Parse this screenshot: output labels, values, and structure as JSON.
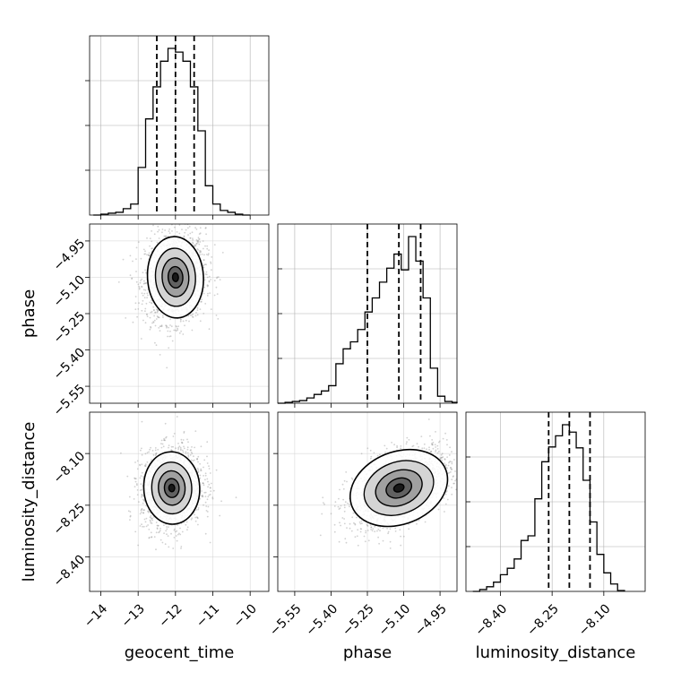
{
  "chart_data": {
    "type": "corner",
    "parameters": [
      "geocent_time",
      "phase",
      "luminosity_distance"
    ],
    "axes": {
      "geocent_time": {
        "ticks": [
          -14,
          -13,
          -12,
          -11,
          -10
        ],
        "tick_labels": [
          "−14",
          "−13",
          "−12",
          "−11",
          "−10"
        ],
        "lim": [
          -14.3,
          -9.5
        ]
      },
      "phase": {
        "ticks": [
          -5.55,
          -5.4,
          -5.25,
          -5.1,
          -4.95
        ],
        "tick_labels": [
          "−5.55",
          "−5.40",
          "−5.25",
          "−5.10",
          "−4.95"
        ],
        "lim": [
          -5.62,
          -4.88
        ]
      },
      "luminosity_distance": {
        "ticks": [
          -8.4,
          -8.25,
          -8.1
        ],
        "tick_labels": [
          "−8.40",
          "−8.25",
          "−8.10"
        ],
        "lim": [
          -8.5,
          -7.98
        ]
      }
    },
    "grid": true,
    "marginals": [
      {
        "parameter": "geocent_time",
        "quantiles": [
          -12.5,
          -12.0,
          -11.5
        ],
        "bin_edges": [
          -14.2,
          -14.0,
          -13.8,
          -13.6,
          -13.4,
          -13.2,
          -13.0,
          -12.8,
          -12.6,
          -12.4,
          -12.2,
          -12.0,
          -11.8,
          -11.6,
          -11.4,
          -11.2,
          -11.0,
          -10.8,
          -10.6,
          -10.4,
          -10.2,
          -10.0
        ],
        "counts": [
          0,
          1,
          2,
          3,
          7,
          12,
          52,
          105,
          140,
          168,
          182,
          178,
          168,
          140,
          92,
          32,
          12,
          5,
          3,
          1,
          0
        ]
      },
      {
        "parameter": "phase",
        "quantiles": [
          -5.25,
          -5.12,
          -5.03
        ],
        "bin_edges": [
          -5.62,
          -5.59,
          -5.56,
          -5.53,
          -5.5,
          -5.47,
          -5.44,
          -5.41,
          -5.38,
          -5.35,
          -5.32,
          -5.29,
          -5.26,
          -5.23,
          -5.2,
          -5.17,
          -5.14,
          -5.11,
          -5.08,
          -5.05,
          -5.02,
          -4.99,
          -4.96,
          -4.93,
          -4.9,
          -4.88
        ],
        "counts": [
          0,
          1,
          2,
          3,
          6,
          10,
          14,
          20,
          45,
          62,
          70,
          84,
          104,
          120,
          138,
          154,
          170,
          152,
          190,
          162,
          120,
          40,
          8,
          2,
          1
        ]
      },
      {
        "parameter": "luminosity_distance",
        "quantiles": [
          -8.26,
          -8.2,
          -8.14
        ],
        "bin_edges": [
          -8.48,
          -8.46,
          -8.44,
          -8.42,
          -8.4,
          -8.38,
          -8.36,
          -8.34,
          -8.32,
          -8.3,
          -8.28,
          -8.26,
          -8.24,
          -8.22,
          -8.2,
          -8.18,
          -8.16,
          -8.14,
          -8.12,
          -8.1,
          -8.08,
          -8.06,
          -8.04
        ],
        "counts": [
          0,
          2,
          5,
          10,
          18,
          25,
          35,
          55,
          60,
          100,
          140,
          156,
          168,
          180,
          172,
          155,
          120,
          75,
          40,
          20,
          8,
          1
        ]
      }
    ],
    "joint": [
      {
        "x": "geocent_time",
        "y": "phase",
        "center": [
          -12.0,
          -5.1
        ],
        "sigma": [
          0.35,
          0.08
        ],
        "correlation": 0.1
      },
      {
        "x": "geocent_time",
        "y": "luminosity_distance",
        "center": [
          -12.1,
          -8.2
        ],
        "sigma": [
          0.35,
          0.05
        ],
        "correlation": 0.1
      },
      {
        "x": "phase",
        "y": "luminosity_distance",
        "center": [
          -5.12,
          -8.2
        ],
        "sigma": [
          0.09,
          0.05
        ],
        "correlation": 0.5
      }
    ]
  }
}
